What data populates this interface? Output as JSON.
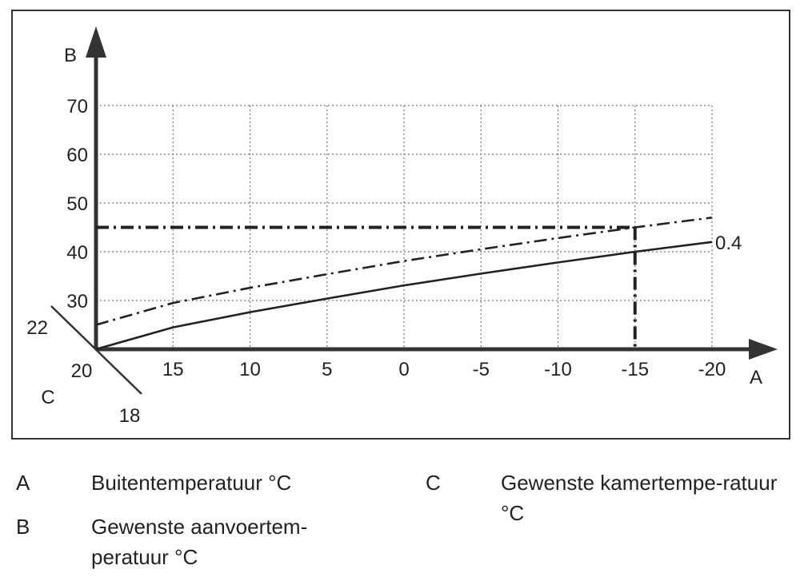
{
  "chart_data": {
    "type": "line",
    "axis_letters": {
      "x": "A",
      "y": "B",
      "room": "C"
    },
    "x_ticks": [
      "15",
      "10",
      "5",
      "0",
      "-5",
      "-10",
      "-15",
      "-20"
    ],
    "x_tick_values": [
      15,
      10,
      5,
      0,
      -5,
      -10,
      -15,
      -20
    ],
    "y_ticks": [
      "30",
      "40",
      "50",
      "60",
      "70"
    ],
    "y_tick_values": [
      30,
      40,
      50,
      60,
      70
    ],
    "room_ticks": [
      "22",
      "20",
      "18"
    ],
    "xlim": [
      20,
      -20
    ],
    "ylim": [
      20,
      70
    ],
    "grid": true,
    "series": [
      {
        "name": "0.4",
        "style": "solid",
        "x": [
          20,
          15,
          10,
          5,
          0,
          -5,
          -10,
          -15,
          -20
        ],
        "y": [
          20,
          24.5,
          27.6,
          30.4,
          33.1,
          35.5,
          37.8,
          40,
          42
        ]
      },
      {
        "style": "dash-dot",
        "x": [
          20,
          15,
          10,
          5,
          0,
          -5,
          -10,
          -15,
          -20
        ],
        "y": [
          25,
          29.5,
          32.6,
          35.4,
          38.1,
          40.5,
          42.8,
          45,
          47
        ]
      }
    ],
    "example": {
      "x": -15,
      "y": 45,
      "style": "dash-dot"
    }
  },
  "legend": [
    {
      "key": "A",
      "text": "Buitentemperatuur °C"
    },
    {
      "key": "B",
      "text": "Gewenste aanvoertem-peratuur °C"
    },
    {
      "key": "C",
      "text": "Gewenste kamertempe-ratuur °C"
    }
  ]
}
